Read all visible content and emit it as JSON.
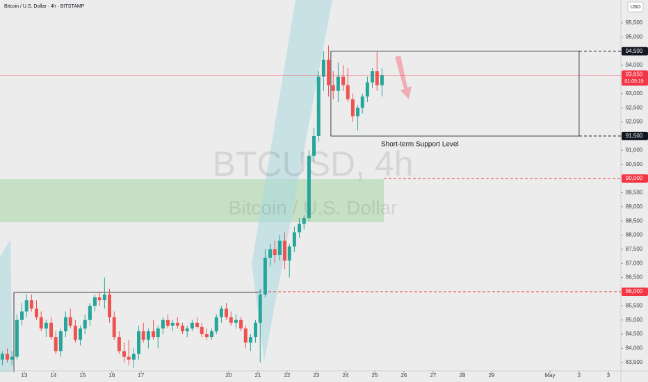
{
  "chart_data": {
    "type": "candlestick",
    "title": "Bitcoin / U.S. Dollar · 4h · BITSTAMP",
    "currency": "USD",
    "watermark": [
      "BTCUSD, 4h",
      "Bitcoin / U.S. Dollar"
    ],
    "annotation": "Short-term Support Level",
    "up_color": "#26a69a",
    "down_color": "#ef5350",
    "grid": false,
    "x": [
      12.25,
      12.42,
      12.58,
      12.75,
      12.92,
      13.08,
      13.25,
      13.42,
      13.58,
      13.75,
      13.92,
      14.08,
      14.25,
      14.42,
      14.58,
      14.75,
      14.92,
      15.08,
      15.25,
      15.42,
      15.58,
      15.75,
      15.92,
      16.08,
      16.25,
      16.42,
      16.58,
      16.75,
      16.92,
      17.08,
      17.25,
      17.42,
      17.58,
      17.75,
      17.92,
      18.08,
      18.25,
      18.42,
      18.58,
      18.75,
      18.92,
      19.08,
      19.25,
      19.42,
      19.58,
      19.75,
      19.92,
      20.08,
      20.25,
      20.42,
      20.58,
      20.75,
      20.92,
      21.08,
      21.25,
      21.42,
      21.58,
      21.75,
      21.92,
      22.08,
      22.25,
      22.42,
      22.58,
      22.75,
      22.92,
      23.08,
      23.25,
      23.42,
      23.58,
      23.75,
      23.92,
      24.08,
      24.25,
      24.42,
      24.58,
      24.75,
      24.92,
      25.08,
      25.25
    ],
    "open": [
      83600,
      83800,
      83600,
      83700,
      85000,
      85300,
      85700,
      85400,
      85100,
      84700,
      84900,
      84400,
      83900,
      84600,
      85100,
      84800,
      84300,
      84700,
      85000,
      85500,
      85800,
      85700,
      85900,
      85100,
      84400,
      83900,
      83700,
      83600,
      83800,
      84600,
      84300,
      84600,
      84400,
      84700,
      85000,
      84800,
      84900,
      84800,
      84600,
      84700,
      84900,
      84750,
      84500,
      84400,
      84600,
      85100,
      85400,
      85100,
      84900,
      85000,
      84700,
      84200,
      84400,
      84900,
      85900,
      87200,
      87500,
      87300,
      87800,
      87100,
      87600,
      88100,
      88400,
      88600,
      90800,
      91500,
      93600,
      94200,
      93300,
      93100,
      93600,
      93300,
      92800,
      92200,
      92500,
      92900,
      93400,
      93800,
      93300
    ],
    "high": [
      83900,
      84000,
      83900,
      85200,
      85600,
      85900,
      85900,
      85700,
      85300,
      85000,
      85100,
      84600,
      84700,
      85300,
      85400,
      85000,
      84800,
      85200,
      85600,
      85900,
      86000,
      86500,
      86100,
      85300,
      84600,
      84200,
      84300,
      84000,
      84800,
      84900,
      84700,
      85000,
      84800,
      85100,
      85200,
      85000,
      85100,
      84900,
      84800,
      85000,
      85100,
      84900,
      84700,
      84700,
      85200,
      85500,
      85600,
      85300,
      85200,
      85100,
      84800,
      84500,
      85000,
      86100,
      87500,
      87700,
      87800,
      88000,
      88100,
      87700,
      88300,
      88600,
      88700,
      91000,
      91800,
      93800,
      94500,
      94700,
      93800,
      94100,
      94000,
      93900,
      93000,
      92600,
      93000,
      93600,
      93900,
      94500,
      93900
    ],
    "low": [
      83400,
      83500,
      83400,
      83600,
      84800,
      85100,
      85300,
      85000,
      84600,
      84400,
      84300,
      83800,
      83700,
      84400,
      84700,
      84200,
      84100,
      84500,
      84800,
      85300,
      85500,
      85400,
      84900,
      84300,
      83800,
      83500,
      83400,
      83300,
      83600,
      84200,
      84000,
      84300,
      84000,
      84500,
      84700,
      84600,
      84700,
      84500,
      84400,
      84600,
      84700,
      84400,
      84300,
      84300,
      84500,
      84900,
      85000,
      84800,
      84700,
      84600,
      84000,
      83900,
      84200,
      83500,
      85800,
      86900,
      87000,
      87100,
      86800,
      86500,
      87400,
      87900,
      88200,
      88500,
      90600,
      91300,
      93100,
      92900,
      92800,
      92700,
      93100,
      92700,
      92000,
      91700,
      92300,
      92700,
      93200,
      93100,
      92900
    ],
    "close": [
      83800,
      83600,
      83700,
      85000,
      85300,
      85700,
      85400,
      85100,
      84700,
      84900,
      84400,
      83900,
      84600,
      85100,
      84800,
      84300,
      84700,
      85000,
      85500,
      85800,
      85700,
      85900,
      85100,
      84400,
      83900,
      83700,
      83600,
      83800,
      84600,
      84300,
      84600,
      84400,
      84700,
      85000,
      84800,
      84900,
      84800,
      84600,
      84700,
      84900,
      84750,
      84500,
      84400,
      84600,
      85100,
      85400,
      85100,
      84900,
      85000,
      84700,
      84200,
      84400,
      84900,
      85900,
      87200,
      87500,
      87300,
      87800,
      87100,
      87600,
      88100,
      88400,
      88600,
      90800,
      91500,
      93600,
      94200,
      93300,
      93100,
      93600,
      93300,
      92800,
      92200,
      92500,
      92900,
      93400,
      93800,
      93300,
      93650
    ],
    "xlim": [
      12.17,
      33.43
    ],
    "xticks": [
      13,
      14,
      15,
      16,
      17,
      20,
      21,
      22,
      23,
      24,
      25,
      26,
      27,
      28,
      29,
      {
        "value": 31,
        "label": "May"
      },
      {
        "value": 32,
        "label": "2"
      },
      {
        "value": 33,
        "label": "3"
      }
    ],
    "ylim": [
      83250,
      96310
    ],
    "yticks": [
      {
        "value": 83500,
        "label": "83,500"
      },
      {
        "value": 84000,
        "label": "84,000"
      },
      {
        "value": 84500,
        "label": "84,500"
      },
      {
        "value": 85000,
        "label": "85,000"
      },
      {
        "value": 85500,
        "label": "85,500"
      },
      {
        "value": 86500,
        "label": "86,500"
      },
      {
        "value": 87000,
        "label": "87,000"
      },
      {
        "value": 87500,
        "label": "87,500"
      },
      {
        "value": 88000,
        "label": "88,000"
      },
      {
        "value": 88500,
        "label": "88,500"
      },
      {
        "value": 89000,
        "label": "89,000"
      },
      {
        "value": 89500,
        "label": "89,500"
      },
      {
        "value": 90500,
        "label": "90,500"
      },
      {
        "value": 91000,
        "label": "91,000"
      },
      {
        "value": 92000,
        "label": "92,000"
      },
      {
        "value": 92500,
        "label": "92,500"
      },
      {
        "value": 93000,
        "label": "93,000"
      },
      {
        "value": 94000,
        "label": "94,000"
      },
      {
        "value": 95000,
        "label": "95,000"
      },
      {
        "value": 95500,
        "label": "95,500"
      }
    ],
    "levels": [
      {
        "value": 94500,
        "label": "94,500",
        "color": "#131722"
      },
      {
        "value": 91500,
        "label": "91,500",
        "color": "#131722"
      },
      {
        "value": 90000,
        "label": "90,000",
        "color": "#f23645"
      },
      {
        "value": 86000,
        "label": "86,000",
        "color": "#f23645"
      }
    ],
    "last_price": {
      "value": 93650,
      "label": "93,650",
      "countdown": "01:09:19",
      "color": "#f23645"
    }
  }
}
